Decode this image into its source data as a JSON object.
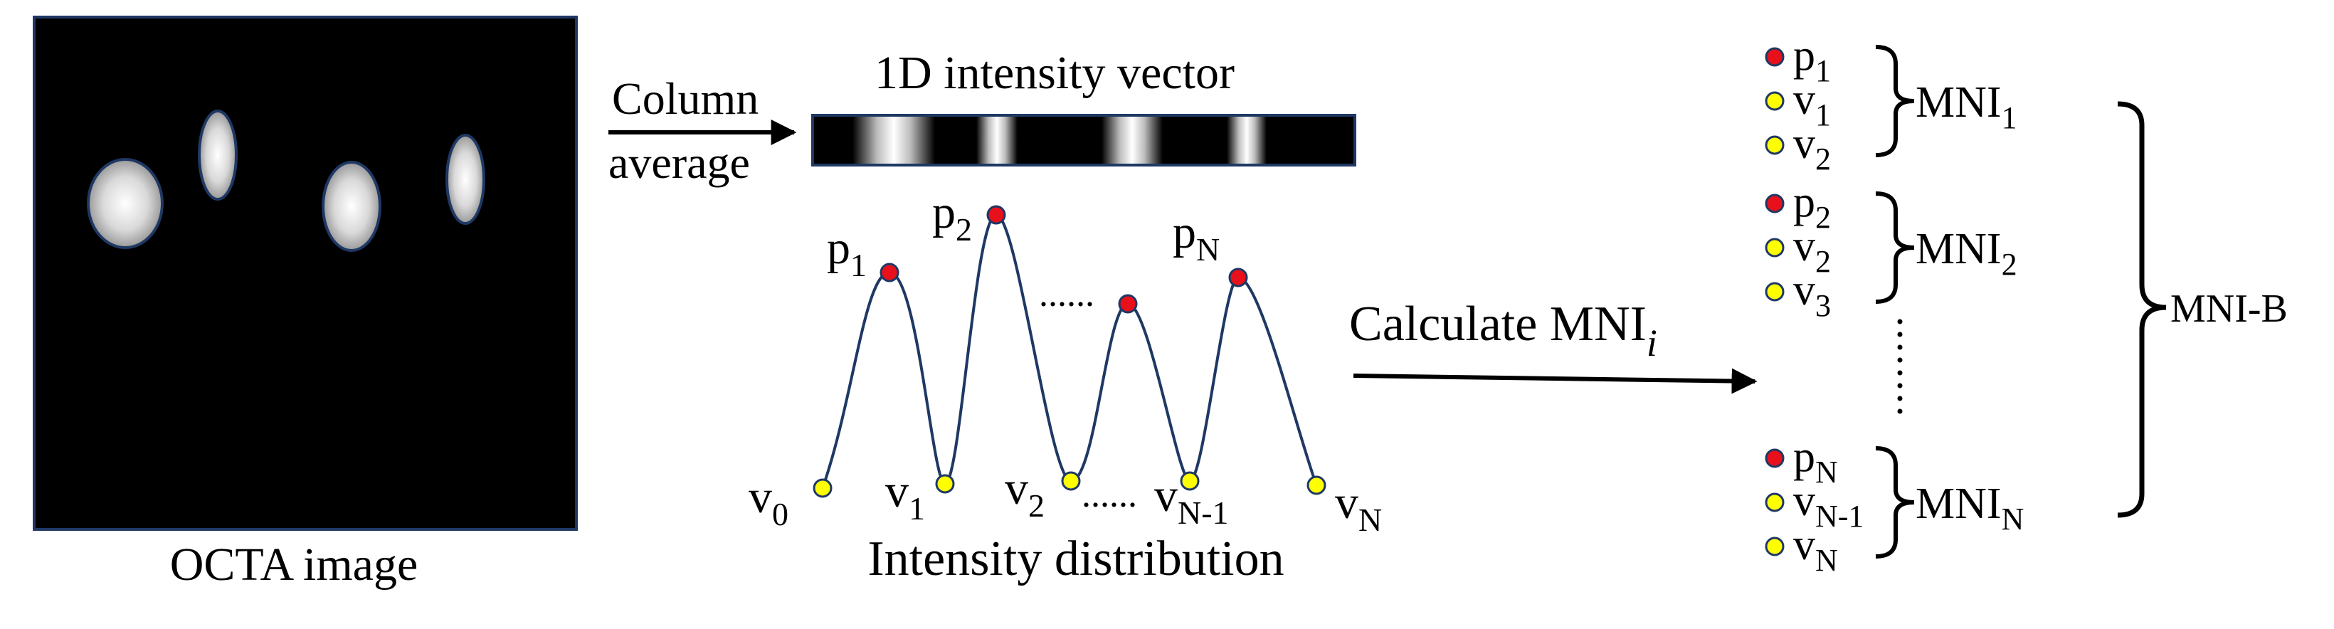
{
  "octa": {
    "caption": "OCTA image",
    "frame_color": "#1f3864",
    "background_color": "#000000"
  },
  "arrow1": {
    "label_line1": "Column",
    "label_line2": "average"
  },
  "vector": {
    "title": "1D intensity vector"
  },
  "distribution": {
    "caption": "Intensity distribution",
    "curve_color": "#1f3864",
    "peak_color": "#e8101a",
    "valley_color": "#ffff00",
    "labels": {
      "p1": {
        "base": "p",
        "sub": "1"
      },
      "p2": {
        "base": "p",
        "sub": "2"
      },
      "pN": {
        "base": "p",
        "sub": "N"
      },
      "v0": {
        "base": "v",
        "sub": "0"
      },
      "v1": {
        "base": "v",
        "sub": "1"
      },
      "v2": {
        "base": "v",
        "sub": "2"
      },
      "vN1": {
        "base": "v",
        "sub": "N-1"
      },
      "vN": {
        "base": "v",
        "sub": "N"
      }
    },
    "dots_upper": "......",
    "dots_lower": "......"
  },
  "arrow2": {
    "label": "Calculate MNI",
    "label_sub": "i"
  },
  "groups": [
    {
      "items": [
        {
          "type": "peak",
          "base": "p",
          "sub": "1"
        },
        {
          "type": "valley",
          "base": "v",
          "sub": "1"
        },
        {
          "type": "valley",
          "base": "v",
          "sub": "2"
        }
      ],
      "mni": {
        "base": "MNI",
        "sub": "1"
      }
    },
    {
      "items": [
        {
          "type": "peak",
          "base": "p",
          "sub": "2"
        },
        {
          "type": "valley",
          "base": "v",
          "sub": "2"
        },
        {
          "type": "valley",
          "base": "v",
          "sub": "3"
        }
      ],
      "mni": {
        "base": "MNI",
        "sub": "2"
      }
    },
    {
      "items": [
        {
          "type": "peak",
          "base": "p",
          "sub": "N"
        },
        {
          "type": "valley",
          "base": "v",
          "sub": "N-1"
        },
        {
          "type": "valley",
          "base": "v",
          "sub": "N"
        }
      ],
      "mni": {
        "base": "MNI",
        "sub": "N"
      }
    }
  ],
  "final": {
    "label": "MNI-B"
  }
}
